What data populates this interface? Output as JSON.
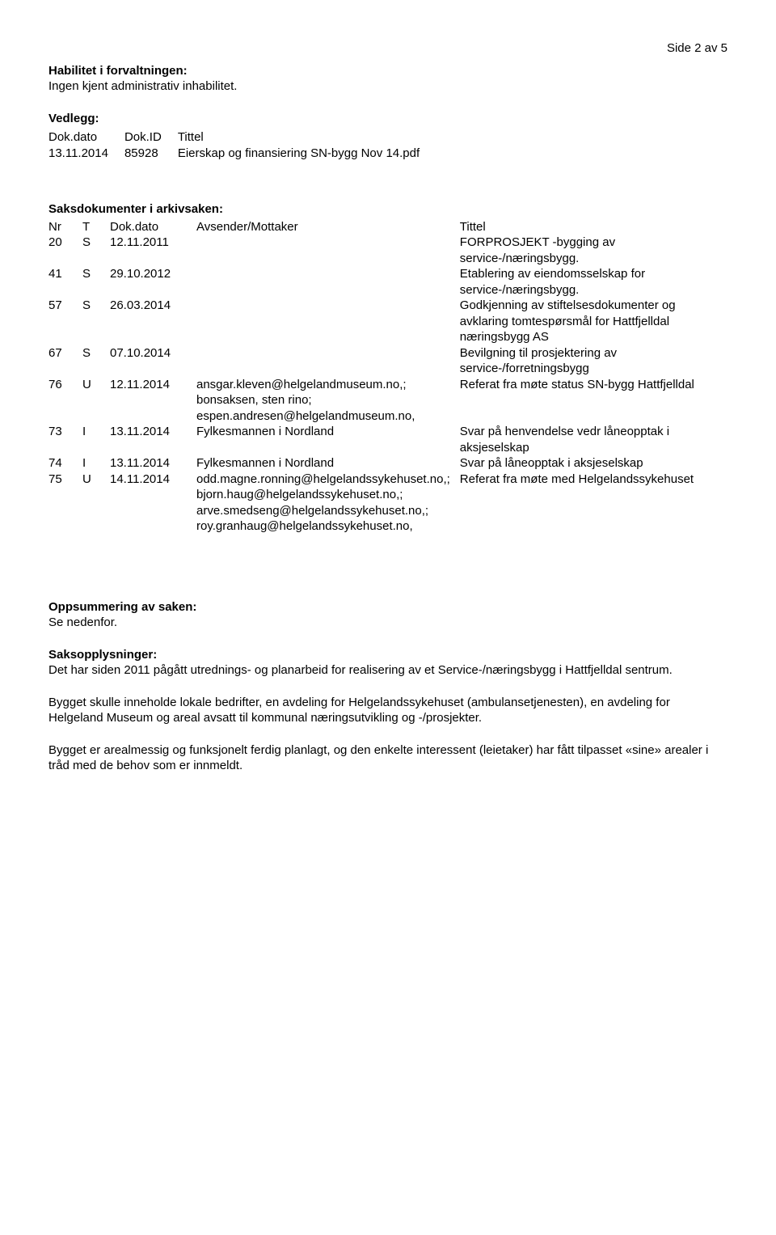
{
  "page_number": "Side 2 av 5",
  "habilitet": {
    "heading": "Habilitet i forvaltningen:",
    "text": "Ingen kjent administrativ inhabilitet."
  },
  "vedlegg": {
    "heading": "Vedlegg:",
    "headers": [
      "Dok.dato",
      "Dok.ID",
      "Tittel"
    ],
    "rows": [
      [
        "13.11.2014",
        "85928",
        "Eierskap og finansiering SN-bygg Nov 14.pdf"
      ]
    ]
  },
  "saksdok": {
    "heading": "Saksdokumenter i arkivsaken:",
    "headers": [
      "Nr",
      "T",
      "Dok.dato",
      "Avsender/Mottaker",
      "Tittel"
    ],
    "rows": [
      {
        "nr": "20",
        "t": "S",
        "d": "12.11.2011",
        "s": "",
        "ti": "FORPROSJEKT -bygging av service-/næringsbygg."
      },
      {
        "nr": "41",
        "t": "S",
        "d": "29.10.2012",
        "s": "",
        "ti": "Etablering av eiendomsselskap for service-/næringsbygg."
      },
      {
        "nr": "57",
        "t": "S",
        "d": "26.03.2014",
        "s": "",
        "ti": "Godkjenning av stiftelsesdokumenter og avklaring tomtespørsmål for Hattfjelldal næringsbygg AS"
      },
      {
        "nr": "67",
        "t": "S",
        "d": "07.10.2014",
        "s": "",
        "ti": "Bevilgning til prosjektering av service-/forretningsbygg"
      },
      {
        "nr": "76",
        "t": "U",
        "d": "12.11.2014",
        "s": "ansgar.kleven@helgelandmuseum.no,; bonsaksen, sten rino; espen.andresen@helgelandmuseum.no,",
        "ti": "Referat fra møte status SN-bygg Hattfjelldal"
      },
      {
        "nr": "73",
        "t": "I",
        "d": "13.11.2014",
        "s": "Fylkesmannen i Nordland",
        "ti": "Svar på henvendelse vedr låneopptak i aksjeselskap"
      },
      {
        "nr": "74",
        "t": "I",
        "d": "13.11.2014",
        "s": "Fylkesmannen i Nordland",
        "ti": "Svar på låneopptak i aksjeselskap"
      },
      {
        "nr": "75",
        "t": "U",
        "d": "14.11.2014",
        "s": "odd.magne.ronning@helgelandssykehuset.no,; bjorn.haug@helgelandssykehuset.no,; arve.smedseng@helgelandssykehuset.no,; roy.granhaug@helgelandssykehuset.no,",
        "ti": "Referat fra møte med Helgelandssykehuset"
      }
    ]
  },
  "oppsummering": {
    "heading": "Oppsummering av saken:",
    "text": "Se nedenfor."
  },
  "saksopplysninger": {
    "heading": "Saksopplysninger:",
    "paragraphs": [
      "Det har siden 2011 pågått utrednings- og planarbeid for realisering av et Service-/næringsbygg i Hattfjelldal sentrum.",
      "Bygget skulle inneholde lokale bedrifter, en avdeling for Helgelandssykehuset (ambulansetjenesten), en avdeling for Helgeland Museum og areal avsatt til kommunal næringsutvikling og -/prosjekter.",
      "Bygget er arealmessig og funksjonelt ferdig planlagt, og den enkelte interessent (leietaker) har fått tilpasset «sine» arealer i tråd med de behov som er innmeldt."
    ]
  }
}
